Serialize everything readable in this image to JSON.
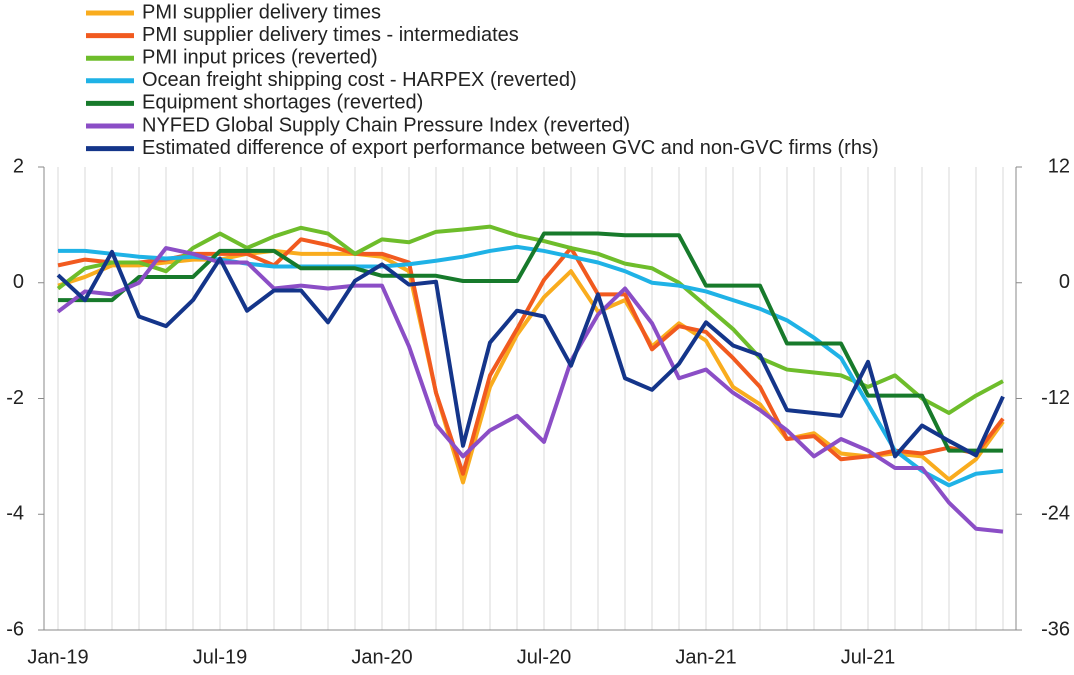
{
  "chart_data": {
    "type": "line",
    "categories": [
      "Jan-19",
      null,
      null,
      null,
      null,
      null,
      "Jul-19",
      null,
      null,
      null,
      null,
      null,
      "Jan-20",
      null,
      null,
      null,
      null,
      null,
      "Jul-20",
      null,
      null,
      null,
      null,
      null,
      "Jan-21",
      null,
      null,
      null,
      null,
      null,
      "Jul-21",
      null,
      null,
      null,
      null,
      null
    ],
    "ylim": [
      -6,
      2
    ],
    "yticks": [
      -6,
      -4,
      -2,
      0,
      2
    ],
    "y2lim": [
      -36,
      12
    ],
    "y2ticks": [
      -36,
      -24,
      -12,
      0,
      12
    ],
    "x_grid": true,
    "series": [
      {
        "name": "PMI supplier delivery times",
        "color": "#f9ac1e",
        "values": [
          -0.05,
          0.1,
          0.3,
          0.3,
          0.35,
          0.4,
          0.4,
          0.5,
          0.55,
          0.5,
          0.5,
          0.5,
          0.45,
          0.2,
          -1.9,
          -3.45,
          -1.8,
          -0.9,
          -0.25,
          0.2,
          -0.5,
          -0.3,
          -1.1,
          -0.7,
          -1.0,
          -1.8,
          -2.1,
          -2.7,
          -2.6,
          -2.95,
          -3.0,
          -2.95,
          -3.0,
          -3.4,
          -3.05,
          -2.4
        ]
      },
      {
        "name": "PMI supplier delivery times - intermediates",
        "color": "#f15a1f",
        "values": [
          0.3,
          0.4,
          0.35,
          0.35,
          0.4,
          0.5,
          0.5,
          0.5,
          0.3,
          0.75,
          0.65,
          0.5,
          0.5,
          0.35,
          -1.9,
          -3.3,
          -1.6,
          -0.8,
          0.05,
          0.6,
          -0.2,
          -0.2,
          -1.15,
          -0.75,
          -0.85,
          -1.3,
          -1.8,
          -2.7,
          -2.65,
          -3.05,
          -3.0,
          -2.9,
          -2.95,
          -2.85,
          -2.95,
          -2.35
        ]
      },
      {
        "name": "PMI input prices (reverted)",
        "color": "#6ebd2b",
        "values": [
          -0.1,
          0.25,
          0.35,
          0.35,
          0.2,
          0.6,
          0.85,
          0.6,
          0.8,
          0.95,
          0.85,
          0.5,
          0.75,
          0.7,
          0.88,
          0.92,
          0.97,
          0.82,
          0.72,
          0.6,
          0.5,
          0.33,
          0.25,
          0.0,
          -0.4,
          -0.8,
          -1.3,
          -1.5,
          -1.55,
          -1.6,
          -1.8,
          -1.6,
          -2.0,
          -2.25,
          -1.95,
          -1.7
        ]
      },
      {
        "name": "Ocean freight shipping cost - HARPEX (reverted)",
        "color": "#1fb2e6",
        "values": [
          0.55,
          0.55,
          0.5,
          0.45,
          0.42,
          0.45,
          0.4,
          0.33,
          0.28,
          0.28,
          0.28,
          0.28,
          0.28,
          0.32,
          0.38,
          0.45,
          0.55,
          0.62,
          0.55,
          0.45,
          0.35,
          0.2,
          0.0,
          -0.05,
          -0.15,
          -0.3,
          -0.45,
          -0.65,
          -0.95,
          -1.3,
          -2.1,
          -2.9,
          -3.25,
          -3.5,
          -3.3,
          -3.25
        ]
      },
      {
        "name": "Equipment shortages (reverted)",
        "color": "#177a2b",
        "values": [
          -0.3,
          -0.3,
          -0.3,
          0.1,
          0.1,
          0.1,
          0.55,
          0.55,
          0.55,
          0.25,
          0.25,
          0.25,
          0.12,
          0.12,
          0.12,
          0.03,
          0.03,
          0.03,
          0.85,
          0.85,
          0.85,
          0.82,
          0.82,
          0.82,
          -0.05,
          -0.05,
          -0.05,
          -1.05,
          -1.05,
          -1.05,
          -1.95,
          -1.95,
          -1.95,
          -2.9,
          -2.9,
          -2.9
        ]
      },
      {
        "name": "NYFED Global Supply Chain Pressure Index (reverted)",
        "color": "#8b4ec6",
        "values": [
          -0.5,
          -0.15,
          -0.2,
          0.0,
          0.6,
          0.5,
          0.35,
          0.35,
          -0.1,
          -0.05,
          -0.1,
          -0.05,
          -0.05,
          -1.1,
          -2.45,
          -3.0,
          -2.55,
          -2.3,
          -2.75,
          -1.35,
          -0.55,
          -0.1,
          -0.7,
          -1.65,
          -1.5,
          -1.9,
          -2.2,
          -2.55,
          -3.0,
          -2.7,
          -2.9,
          -3.2,
          -3.2,
          -3.8,
          -4.25,
          -4.3
        ]
      },
      {
        "name": "Estimated difference of export performance between GVC and non-GVC firms (rhs)",
        "color": "#14358a",
        "axis": "y2",
        "values": [
          0.8,
          -1.8,
          3.2,
          -3.5,
          -4.5,
          -1.8,
          2.5,
          -2.9,
          -0.8,
          -0.8,
          -4.1,
          0.2,
          1.9,
          -0.2,
          0.1,
          -16.9,
          -6.2,
          -2.9,
          -3.5,
          -8.6,
          -1.2,
          -9.9,
          -11.1,
          -8.4,
          -4.1,
          -6.5,
          -7.5,
          -13.2,
          -13.5,
          -13.8,
          -8.2,
          -18.0,
          -14.8,
          -16.4,
          -17.9,
          -11.8
        ]
      }
    ]
  }
}
